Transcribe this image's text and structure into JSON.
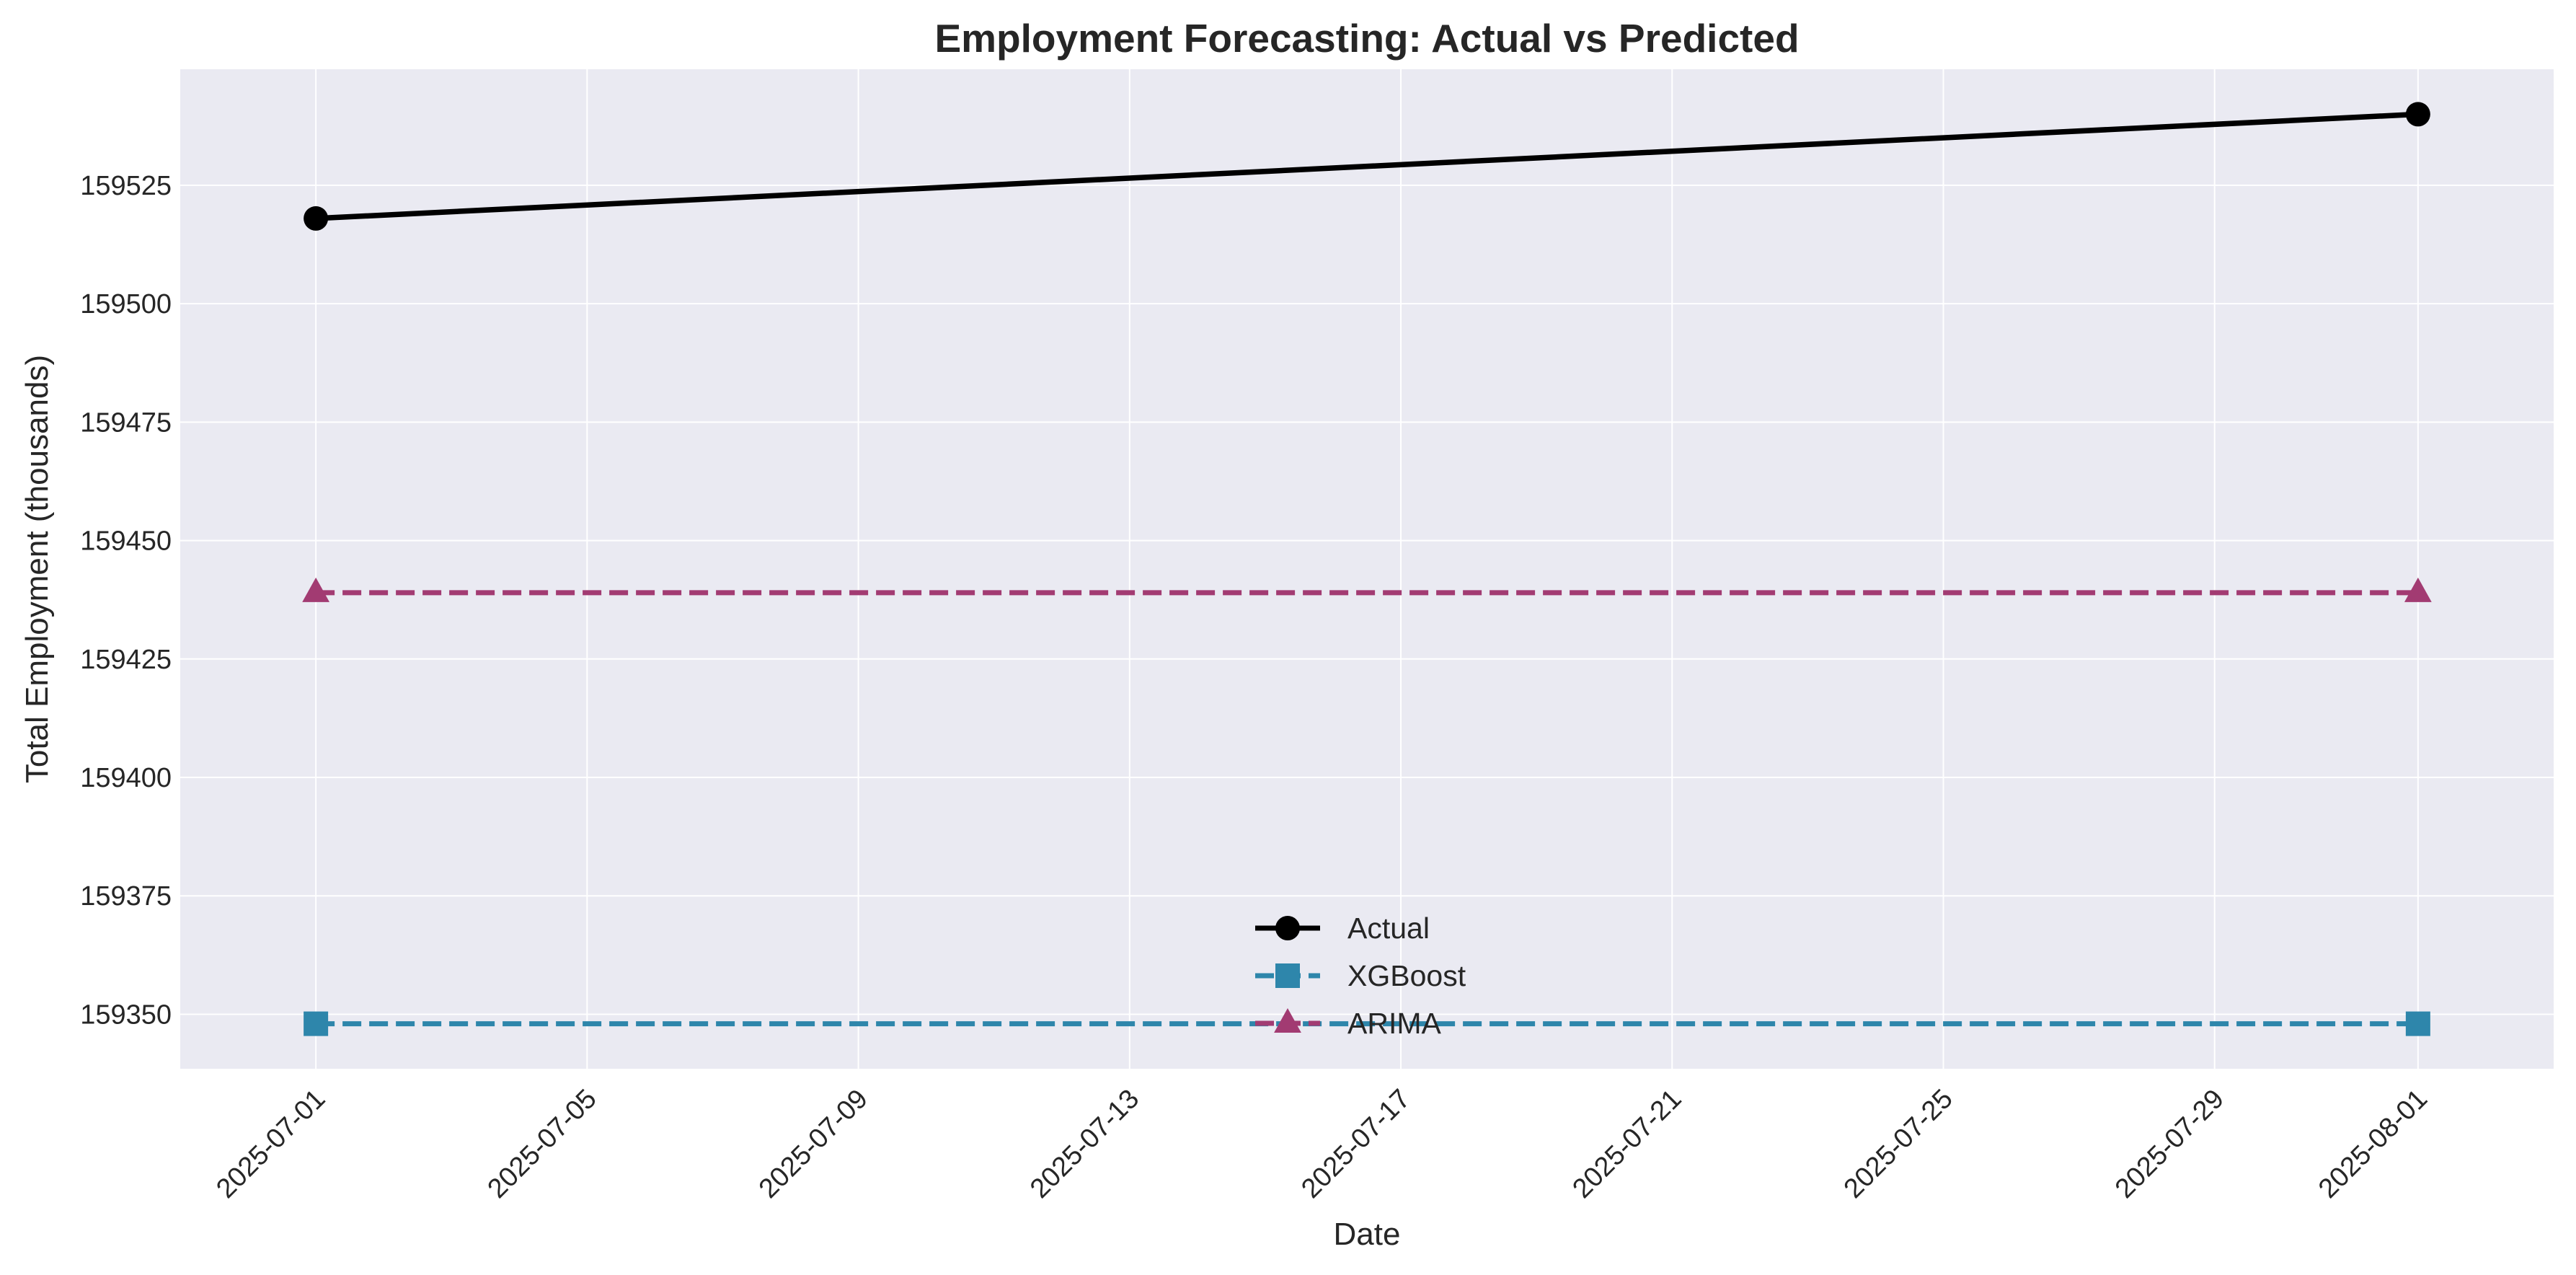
{
  "chart_data": {
    "type": "line",
    "title": "Employment Forecasting: Actual vs Predicted",
    "xlabel": "Date",
    "ylabel": "Total Employment (thousands)",
    "x": [
      "2025-07-01",
      "2025-08-01"
    ],
    "xlim": [
      "2025-06-29",
      "2025-08-03"
    ],
    "x_ticks": [
      "2025-07-01",
      "2025-07-05",
      "2025-07-09",
      "2025-07-13",
      "2025-07-17",
      "2025-07-21",
      "2025-07-25",
      "2025-07-29",
      "2025-08-01"
    ],
    "ylim": [
      159338.5,
      159549.5
    ],
    "y_ticks": [
      159350,
      159375,
      159400,
      159425,
      159450,
      159475,
      159500,
      159525
    ],
    "grid": true,
    "legend_position": "lower-center",
    "series": [
      {
        "name": "Actual",
        "values": [
          159518,
          159540
        ],
        "color": "#000000",
        "marker": "circle",
        "line_style": "solid"
      },
      {
        "name": "XGBoost",
        "values": [
          159348,
          159348
        ],
        "color": "#2E86AB",
        "marker": "square",
        "line_style": "dashed"
      },
      {
        "name": "ARIMA",
        "values": [
          159439,
          159439
        ],
        "color": "#A23B72",
        "marker": "triangle",
        "line_style": "dashed"
      }
    ],
    "colors": {
      "plot_background": "#EAEAF2",
      "grid": "#FFFFFF",
      "text": "#262626"
    }
  }
}
